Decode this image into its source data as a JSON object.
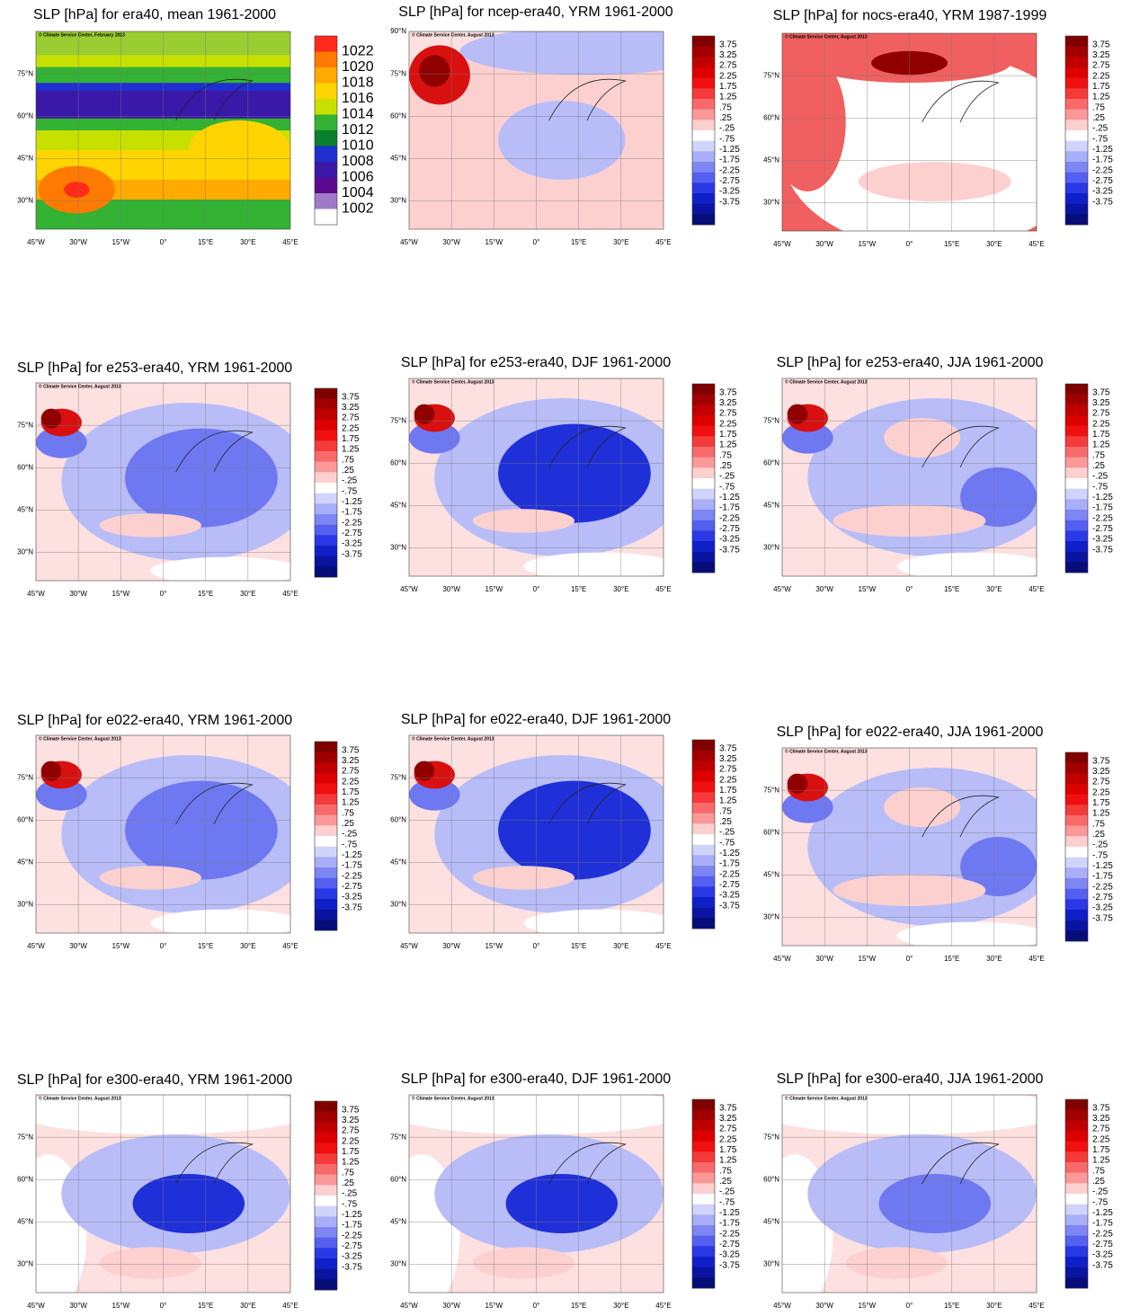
{
  "panels": [
    {
      "title": "SLP [hPa] for era40, mean 1961-2000",
      "credit": "© Climate Service Center, February 2013",
      "lat_labels": [
        "75°N",
        "60°N",
        "45°N",
        "30°N"
      ],
      "colorbar": {
        "labels": [
          "1022",
          "1020",
          "1018",
          "1016",
          "1014",
          "1012",
          "1010",
          "1008",
          "1006",
          "1004",
          "1002"
        ],
        "colors": [
          "#ff2a1a",
          "#ff7a00",
          "#ffaa00",
          "#ffd400",
          "#c8e000",
          "#33b233",
          "#0a7f2e",
          "#1f2fd0",
          "#3a18a8",
          "#5c0a8f",
          "#a07ac8",
          "#ffffff"
        ]
      }
    },
    {
      "title": "SLP [hPa] for ncep-era40, YRM 1961-2000",
      "credit": "© Climate Service Center, August 2013",
      "lat_labels": [
        "90°N",
        "75°N",
        "60°N",
        "45°N",
        "30°N"
      ]
    },
    {
      "title": "SLP [hPa] for nocs-era40, YRM 1987-1999",
      "credit": "© Climate Service Center, August 2013",
      "lat_labels": [
        "75°N",
        "60°N",
        "45°N",
        "30°N"
      ]
    },
    {
      "title": "SLP [hPa] for e253-era40, YRM 1961-2000",
      "credit": "© Climate Service Center, August 2013",
      "lat_labels": [
        "75°N",
        "60°N",
        "45°N",
        "30°N"
      ]
    },
    {
      "title": "SLP [hPa] for e253-era40, DJF 1961-2000",
      "credit": "© Climate Service Center, August 2013",
      "lat_labels": [
        "75°N",
        "60°N",
        "45°N",
        "30°N"
      ]
    },
    {
      "title": "SLP [hPa] for e253-era40, JJA 1961-2000",
      "credit": "© Climate Service Center, August 2013",
      "lat_labels": [
        "75°N",
        "60°N",
        "45°N",
        "30°N"
      ]
    },
    {
      "title": "SLP [hPa] for e022-era40, YRM 1961-2000",
      "credit": "© Climate Service Center, August 2013",
      "lat_labels": [
        "75°N",
        "60°N",
        "45°N",
        "30°N"
      ]
    },
    {
      "title": "SLP [hPa] for e022-era40, DJF 1961-2000",
      "credit": "© Climate Service Center, August 2013",
      "lat_labels": [
        "75°N",
        "60°N",
        "45°N",
        "30°N"
      ]
    },
    {
      "title": "SLP [hPa] for e022-era40, JJA 1961-2000",
      "credit": "© Climate Service Center, August 2013",
      "lat_labels": [
        "75°N",
        "60°N",
        "45°N",
        "30°N"
      ]
    },
    {
      "title": "SLP [hPa] for e300-era40, YRM 1961-2000",
      "credit": "© Climate Service Center, August 2013",
      "lat_labels": [
        "75°N",
        "60°N",
        "45°N",
        "30°N"
      ]
    },
    {
      "title": "SLP [hPa] for e300-era40, DJF 1961-2000",
      "credit": "© Climate Service Center, August 2013",
      "lat_labels": [
        "75°N",
        "60°N",
        "45°N",
        "30°N"
      ]
    },
    {
      "title": "SLP [hPa] for e300-era40, JJA 1961-2000",
      "credit": "© Climate Service Center, August 2013",
      "lat_labels": [
        "75°N",
        "60°N",
        "45°N",
        "30°N"
      ]
    }
  ],
  "lon_labels": [
    "45°W",
    "30°W",
    "15°W",
    "0°",
    "15°E",
    "30°E",
    "45°E"
  ],
  "difference_colorbar": {
    "labels": [
      "3.75",
      "3.25",
      "2.75",
      "2.25",
      "1.75",
      "1.25",
      ".75",
      ".25",
      "-.25",
      "-.75",
      "-1.25",
      "-1.75",
      "-2.25",
      "-2.75",
      "-3.25",
      "-3.75"
    ],
    "colors": [
      "#800000",
      "#a00000",
      "#c00000",
      "#dd0000",
      "#f01010",
      "#f53a3a",
      "#f86a6a",
      "#fb9898",
      "#fdd0d0",
      "#ffffff",
      "#d0d4fb",
      "#a8aef8",
      "#7e86f4",
      "#5560f0",
      "#2a38e6",
      "#1020c8",
      "#0a14a0",
      "#060c78"
    ]
  }
}
